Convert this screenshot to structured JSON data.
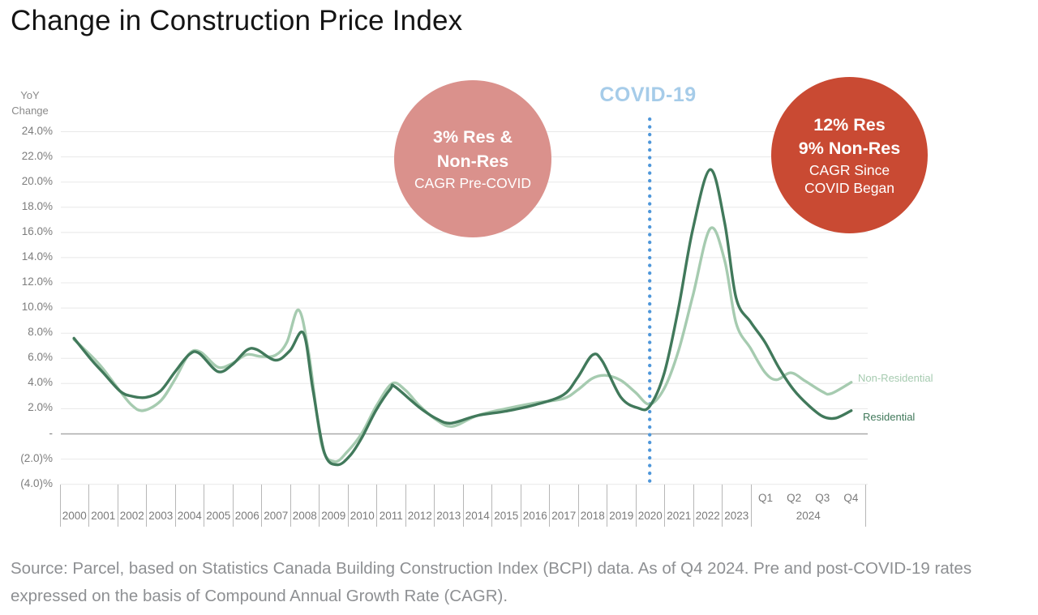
{
  "title": "Change in Construction Price Index",
  "y_axis": {
    "label_line1": "YoY",
    "label_line2": "Change",
    "ticks": [
      {
        "label": "24.0%",
        "value": 24
      },
      {
        "label": "22.0%",
        "value": 22
      },
      {
        "label": "20.0%",
        "value": 20
      },
      {
        "label": "18.0%",
        "value": 18
      },
      {
        "label": "16.0%",
        "value": 16
      },
      {
        "label": "14.0%",
        "value": 14
      },
      {
        "label": "12.0%",
        "value": 12
      },
      {
        "label": "10.0%",
        "value": 10
      },
      {
        "label": "8.0%",
        "value": 8
      },
      {
        "label": "6.0%",
        "value": 6
      },
      {
        "label": "4.0%",
        "value": 4
      },
      {
        "label": "2.0%",
        "value": 2
      },
      {
        "label": "-",
        "value": 0
      },
      {
        "label": "(2.0)%",
        "value": -2
      },
      {
        "label": "(4.0)%",
        "value": -4
      }
    ]
  },
  "x_axis": {
    "years": [
      "2000",
      "2001",
      "2002",
      "2003",
      "2004",
      "2005",
      "2006",
      "2007",
      "2008",
      "2009",
      "2010",
      "2011",
      "2012",
      "2013",
      "2014",
      "2015",
      "2016",
      "2017",
      "2018",
      "2019",
      "2020",
      "2021",
      "2022",
      "2023"
    ],
    "quarter_labels": [
      "Q1",
      "Q2",
      "Q3",
      "Q4"
    ],
    "group_label": "2024"
  },
  "annotations": {
    "pre_covid_circle": {
      "bold_lines": [
        "3% Res &",
        "Non-Res"
      ],
      "regular_lines": [
        "CAGR Pre-COVID"
      ],
      "color": "#da918c"
    },
    "post_covid_circle": {
      "bold_lines": [
        "12% Res",
        "9% Non-Res"
      ],
      "regular_lines": [
        "CAGR Since",
        "COVID Began"
      ],
      "color": "#c94a33"
    },
    "covid_label": {
      "text": "COVID-19",
      "color": "#a6cce9"
    },
    "covid_line": {
      "color": "#4f97da",
      "x_index": 20
    }
  },
  "legend": {
    "non_residential": "Non-Residential",
    "residential": "Residential"
  },
  "source": "Source: Parcel, based on Statistics Canada Building Construction Index (BCPI) data. As of Q4 2024. Pre and post-COVID-19 rates expressed on the basis of Compound Annual Growth Rate (CAGR).",
  "chart_data": {
    "type": "line",
    "title": "Change in Construction Price Index",
    "ylabel": "YoY Change",
    "ylim": [
      -4,
      24
    ],
    "grid": true,
    "x_categories": [
      "2000",
      "2001",
      "2002",
      "2003",
      "2004",
      "2005",
      "2006",
      "2007",
      "2008",
      "2009",
      "2010",
      "2011",
      "2012",
      "2013",
      "2014",
      "2015",
      "2016",
      "2017",
      "2018",
      "2019",
      "2020",
      "2021",
      "2022",
      "2023",
      "2024 Q1",
      "2024 Q2",
      "2024 Q3",
      "2024 Q4"
    ],
    "x_encoding": "points are [x,y] where x is axis tick index: 2000=0 ... 2023=23, 2024 Q1..Q4 = 24..27 (fractional x = intra-year position); y is YoY % change",
    "series": [
      {
        "name": "Non-Residential",
        "color": "#a6cbb0",
        "points": [
          [
            0,
            7.5
          ],
          [
            0.6,
            6.2
          ],
          [
            1,
            5.2
          ],
          [
            1.5,
            3.7
          ],
          [
            2,
            2.3
          ],
          [
            2.4,
            1.85
          ],
          [
            3,
            2.6
          ],
          [
            3.5,
            4.3
          ],
          [
            4,
            6.35
          ],
          [
            4.4,
            6.5
          ],
          [
            5,
            5.3
          ],
          [
            5.5,
            5.6
          ],
          [
            6,
            6.3
          ],
          [
            6.5,
            6.15
          ],
          [
            7,
            6.25
          ],
          [
            7.4,
            7.3
          ],
          [
            7.8,
            9.85
          ],
          [
            8.15,
            6.5
          ],
          [
            8.6,
            -0.8
          ],
          [
            9.05,
            -2.2
          ],
          [
            9.5,
            -1.4
          ],
          [
            10,
            0.05
          ],
          [
            10.5,
            2.2
          ],
          [
            11.05,
            4.0
          ],
          [
            11.5,
            3.5
          ],
          [
            12,
            2.25
          ],
          [
            12.6,
            1.1
          ],
          [
            13.15,
            0.6
          ],
          [
            14,
            1.45
          ],
          [
            15,
            2.0
          ],
          [
            16,
            2.45
          ],
          [
            17,
            2.8
          ],
          [
            17.5,
            3.5
          ],
          [
            18,
            4.4
          ],
          [
            18.45,
            4.65
          ],
          [
            19,
            4.25
          ],
          [
            19.5,
            3.3
          ],
          [
            20,
            2.35
          ],
          [
            20.5,
            3.6
          ],
          [
            21,
            6.6
          ],
          [
            21.5,
            11.0
          ],
          [
            22.1,
            16.3
          ],
          [
            22.6,
            13.8
          ],
          [
            23,
            8.8
          ],
          [
            23.5,
            6.8
          ],
          [
            24,
            4.9
          ],
          [
            24.4,
            4.3
          ],
          [
            24.9,
            4.85
          ],
          [
            25.4,
            4.2
          ],
          [
            26,
            3.35
          ],
          [
            26.3,
            3.2
          ],
          [
            27,
            4.1
          ]
        ]
      },
      {
        "name": "Residential",
        "color": "#41795b",
        "points": [
          [
            0,
            7.6
          ],
          [
            0.6,
            5.9
          ],
          [
            1,
            4.9
          ],
          [
            1.6,
            3.4
          ],
          [
            2,
            3.0
          ],
          [
            2.5,
            2.9
          ],
          [
            3,
            3.4
          ],
          [
            3.5,
            4.9
          ],
          [
            4,
            6.3
          ],
          [
            4.35,
            6.4
          ],
          [
            5,
            4.95
          ],
          [
            5.5,
            5.5
          ],
          [
            6,
            6.65
          ],
          [
            6.35,
            6.7
          ],
          [
            7,
            5.85
          ],
          [
            7.5,
            6.6
          ],
          [
            7.97,
            8.0
          ],
          [
            8.3,
            3.5
          ],
          [
            8.7,
            -1.5
          ],
          [
            9.15,
            -2.45
          ],
          [
            9.6,
            -1.7
          ],
          [
            10,
            -0.3
          ],
          [
            10.5,
            1.9
          ],
          [
            11,
            3.6
          ],
          [
            11.15,
            3.75
          ],
          [
            12,
            2.1
          ],
          [
            12.6,
            1.2
          ],
          [
            13.1,
            0.85
          ],
          [
            14,
            1.45
          ],
          [
            15,
            1.8
          ],
          [
            16,
            2.3
          ],
          [
            17,
            3.1
          ],
          [
            17.5,
            4.5
          ],
          [
            18,
            6.25
          ],
          [
            18.35,
            5.8
          ],
          [
            19,
            2.9
          ],
          [
            19.6,
            2.05
          ],
          [
            20,
            2.2
          ],
          [
            20.5,
            4.8
          ],
          [
            21,
            10.0
          ],
          [
            21.5,
            16.3
          ],
          [
            22.1,
            21.0
          ],
          [
            22.6,
            16.8
          ],
          [
            23,
            10.8
          ],
          [
            23.5,
            8.9
          ],
          [
            24,
            7.3
          ],
          [
            24.5,
            5.2
          ],
          [
            25,
            3.5
          ],
          [
            25.5,
            2.3
          ],
          [
            26,
            1.4
          ],
          [
            26.45,
            1.25
          ],
          [
            27,
            1.85
          ]
        ]
      }
    ]
  }
}
